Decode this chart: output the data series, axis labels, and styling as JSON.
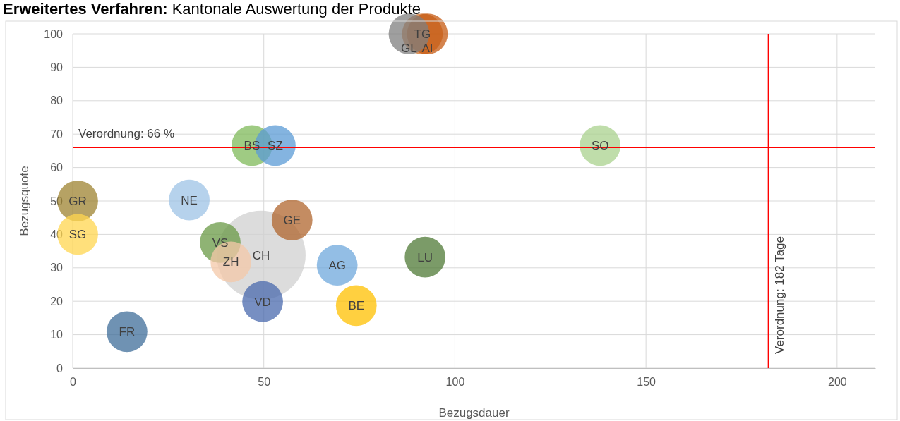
{
  "chart_data": {
    "type": "bubble",
    "title": "Erweitertes Verfahren: Kantonale Auswertung der Produkte",
    "xlabel": "Bezugsdauer",
    "ylabel": "Bezugsquote",
    "xlim": [
      0,
      210
    ],
    "xticks": [
      0,
      50,
      100,
      150,
      200
    ],
    "ylim": [
      0,
      100
    ],
    "yticks": [
      0,
      10,
      20,
      30,
      40,
      50,
      60,
      70,
      80,
      90,
      100
    ],
    "grid": true,
    "legend": false,
    "ref_lines": [
      {
        "axis": "y",
        "value": 66,
        "label": "Verordnung: 66 %",
        "color": "#ff0000"
      },
      {
        "axis": "x",
        "value": 182,
        "label": "Verordnung: 182 Tage",
        "color": "#ff0000"
      }
    ],
    "series": [
      {
        "name": "CH",
        "color": "#d0d0d0",
        "x": [
          49.3
        ],
        "values": [
          33.8
        ],
        "sizes": [
          1
        ]
      },
      {
        "name": "GR",
        "color": "#9e8330",
        "x": [
          1.3
        ],
        "values": [
          50
        ],
        "sizes": [
          0.21
        ]
      },
      {
        "name": "SG",
        "color": "#ffd54f",
        "x": [
          1.3
        ],
        "values": [
          40
        ],
        "sizes": [
          0.21
        ]
      },
      {
        "name": "NE",
        "color": "#9dc3e6",
        "x": [
          30.5
        ],
        "values": [
          50.3
        ],
        "sizes": [
          0.21
        ]
      },
      {
        "name": "BS",
        "color": "#7fba5a",
        "x": [
          46.9
        ],
        "values": [
          66.6
        ],
        "sizes": [
          0.21
        ]
      },
      {
        "name": "SZ",
        "color": "#5b9bd5",
        "x": [
          53
        ],
        "values": [
          66.6
        ],
        "sizes": [
          0.21
        ]
      },
      {
        "name": "SO",
        "color": "#a9d18e",
        "x": [
          138
        ],
        "values": [
          66.6
        ],
        "sizes": [
          0.21
        ]
      },
      {
        "name": "GE",
        "color": "#b0652e",
        "x": [
          57.4
        ],
        "values": [
          44.3
        ],
        "sizes": [
          0.21
        ]
      },
      {
        "name": "VS",
        "color": "#6a9a45",
        "x": [
          38.6
        ],
        "values": [
          37.6
        ],
        "sizes": [
          0.21
        ]
      },
      {
        "name": "ZH",
        "color": "#f4c8a8",
        "x": [
          41.4
        ],
        "values": [
          31.8
        ],
        "sizes": [
          0.21
        ]
      },
      {
        "name": "AG",
        "color": "#6fa8dc",
        "x": [
          69.2
        ],
        "values": [
          30.8
        ],
        "sizes": [
          0.21
        ]
      },
      {
        "name": "LU",
        "color": "#4f7a36",
        "x": [
          92.2
        ],
        "values": [
          33.2
        ],
        "sizes": [
          0.21
        ]
      },
      {
        "name": "VD",
        "color": "#4a6aad",
        "x": [
          49.7
        ],
        "values": [
          19.9
        ],
        "sizes": [
          0.21
        ]
      },
      {
        "name": "BE",
        "color": "#ffc000",
        "x": [
          74.2
        ],
        "values": [
          18.7
        ],
        "sizes": [
          0.21
        ]
      },
      {
        "name": "FR",
        "color": "#3f6e9a",
        "x": [
          14.2
        ],
        "values": [
          10.9
        ],
        "sizes": [
          0.21
        ]
      },
      {
        "name": "TG",
        "color": "#d0702a",
        "x": [
          91.5
        ],
        "values": [
          100
        ],
        "sizes": [
          0.21
        ]
      },
      {
        "name": "AI",
        "color": "#c55a11",
        "x": [
          92.8
        ],
        "values": [
          100
        ],
        "sizes": [
          0.21
        ]
      },
      {
        "name": "GL",
        "color": "#7f7f7f",
        "x": [
          88
        ],
        "values": [
          100
        ],
        "sizes": [
          0.21
        ]
      }
    ]
  }
}
